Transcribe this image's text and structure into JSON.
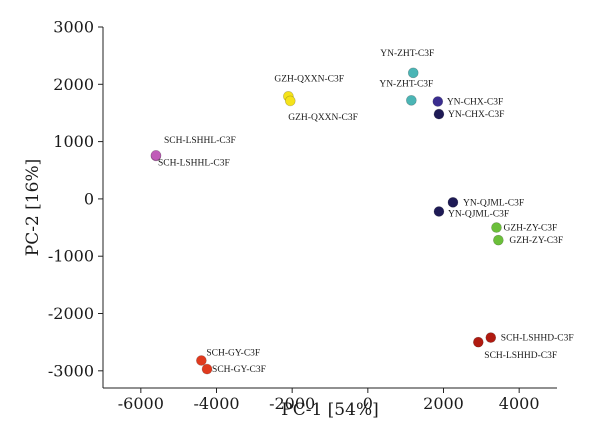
{
  "chart_data": {
    "type": "scatter",
    "title": "",
    "xlabel": "PC-1 [54%]",
    "ylabel": "PC-2 [16%]",
    "xlim": [
      -7000,
      5000
    ],
    "ylim": [
      -3300,
      3000
    ],
    "xticks": [
      -6000,
      -4000,
      -2000,
      0,
      2000,
      4000
    ],
    "xtick_labels": [
      "-6000",
      "-4000",
      "-2000",
      "0",
      "2000",
      "4000"
    ],
    "yticks": [
      3000,
      2000,
      1000,
      0,
      -1000,
      -2000,
      -3000
    ],
    "ytick_labels": [
      "3000",
      "2000",
      "1000",
      "0",
      "-1000",
      "-2000",
      "-3000"
    ],
    "grid": false,
    "points": [
      {
        "label": "YN-ZHT-C3F",
        "x": 1200,
        "y": 2200,
        "color": "#4bb5b5"
      },
      {
        "label": "YN-ZHT-C3F",
        "x": 1150,
        "y": 1720,
        "color": "#4bb5b5"
      },
      {
        "label": "GZH-QXXN-C3F",
        "x": -2100,
        "y": 1790,
        "color": "#f5e31a"
      },
      {
        "label": "GZH-QXXN-C3F",
        "x": -2050,
        "y": 1710,
        "color": "#f5e31a"
      },
      {
        "label": "YN-CHX-C3F",
        "x": 1850,
        "y": 1700,
        "color": "#3a2d8f"
      },
      {
        "label": "YN-CHX-C3F",
        "x": 1880,
        "y": 1480,
        "color": "#1e1a55"
      },
      {
        "label": "SCH-LSHHL-C3F",
        "x": -5600,
        "y": 750,
        "color": "#c05cb8"
      },
      {
        "label": "SCH-LSHHL-C3F",
        "x": -5600,
        "y": 760,
        "color": "#c05cb8"
      },
      {
        "label": "YN-QJML-C3F",
        "x": 2250,
        "y": -60,
        "color": "#1e1a55"
      },
      {
        "label": "YN-QJML-C3F",
        "x": 1880,
        "y": -220,
        "color": "#1e1a55"
      },
      {
        "label": "GZH-ZY-C3F",
        "x": 3400,
        "y": -500,
        "color": "#6bbf3a"
      },
      {
        "label": "GZH-ZY-C3F",
        "x": 3450,
        "y": -720,
        "color": "#6bbf3a"
      },
      {
        "label": "SCH-LSHHD-C3F",
        "x": 3250,
        "y": -2420,
        "color": "#b01a10"
      },
      {
        "label": "SCH-LSHHD-C3F",
        "x": 2920,
        "y": -2500,
        "color": "#b01a10"
      },
      {
        "label": "SCH-GY-C3F",
        "x": -4400,
        "y": -2820,
        "color": "#e03a1e"
      },
      {
        "label": "SCH-GY-C3F",
        "x": -4250,
        "y": -2970,
        "color": "#e03a1e"
      }
    ]
  }
}
